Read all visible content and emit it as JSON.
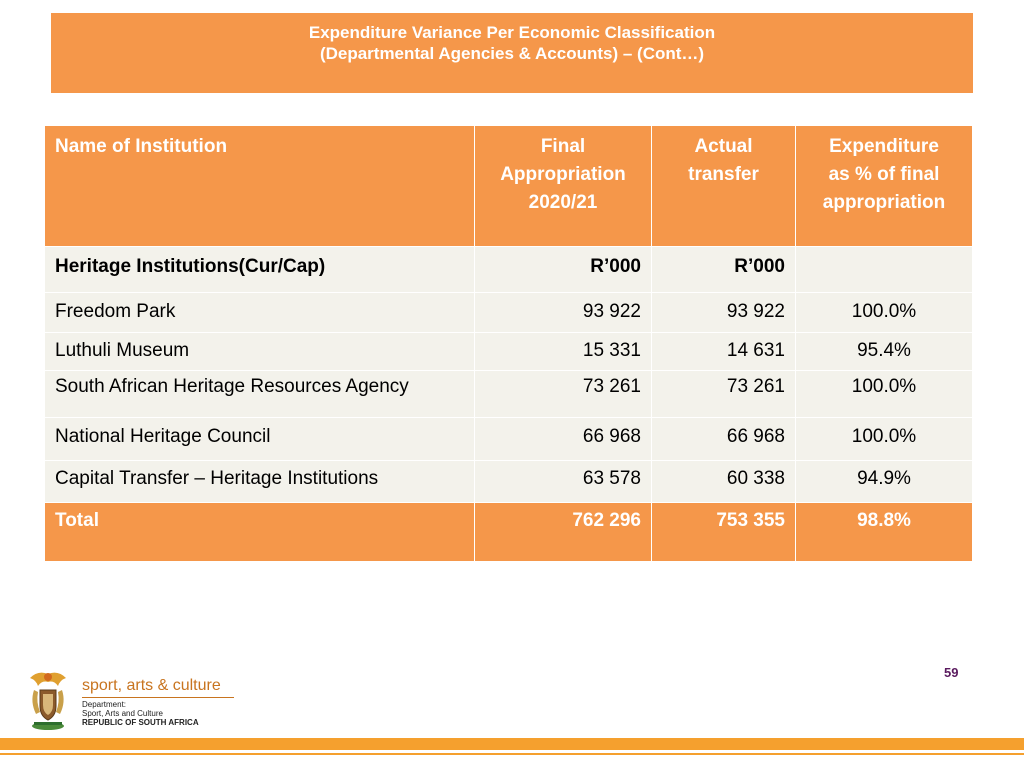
{
  "title": {
    "line1": "Expenditure Variance Per Economic Classification",
    "line2": "(Departmental Agencies & Accounts) – (Cont…)"
  },
  "table": {
    "headers": {
      "name": "Name of Institution",
      "final_appropriation": [
        "Final",
        "Appropriation",
        "2020/21"
      ],
      "actual_transfer": [
        "Actual",
        "transfer"
      ],
      "expenditure_pct": [
        "Expenditure",
        "as % of final",
        "appropriation"
      ]
    },
    "subheader": {
      "name": "Heritage Institutions(Cur/Cap)",
      "final_appropriation": "R’000",
      "actual_transfer": "R’000",
      "expenditure_pct": ""
    },
    "rows": [
      {
        "name": "Freedom Park",
        "final_appropriation": "93 922",
        "actual_transfer": "93 922",
        "expenditure_pct": "100.0%"
      },
      {
        "name": "Luthuli Museum",
        "final_appropriation": "15 331",
        "actual_transfer": "14 631",
        "expenditure_pct": "95.4%"
      },
      {
        "name": "South African Heritage Resources Agency",
        "final_appropriation": "73 261",
        "actual_transfer": "73 261",
        "expenditure_pct": "100.0%"
      },
      {
        "name": "National Heritage Council",
        "final_appropriation": "66 968",
        "actual_transfer": "66 968",
        "expenditure_pct": "100.0%"
      },
      {
        "name": "Capital Transfer – Heritage Institutions",
        "final_appropriation": "63 578",
        "actual_transfer": "60 338",
        "expenditure_pct": "94.9%"
      }
    ],
    "total": {
      "name": "Total",
      "final_appropriation": "762 296",
      "actual_transfer": "753 355",
      "expenditure_pct": "98.8%"
    }
  },
  "page_number": "59",
  "footer": {
    "brand": "sport, arts & culture",
    "dept_line1": "Department:",
    "dept_line2": "Sport, Arts and Culture",
    "dept_line3": "REPUBLIC OF SOUTH AFRICA",
    "logo_icon": "coat-of-arms-icon"
  },
  "colors": {
    "accent": "#f5974a",
    "row_background": "#f3f2eb",
    "page_number": "#5a1a5e",
    "brand_text": "#c8741f",
    "footer_bar": "#f5a02e"
  }
}
